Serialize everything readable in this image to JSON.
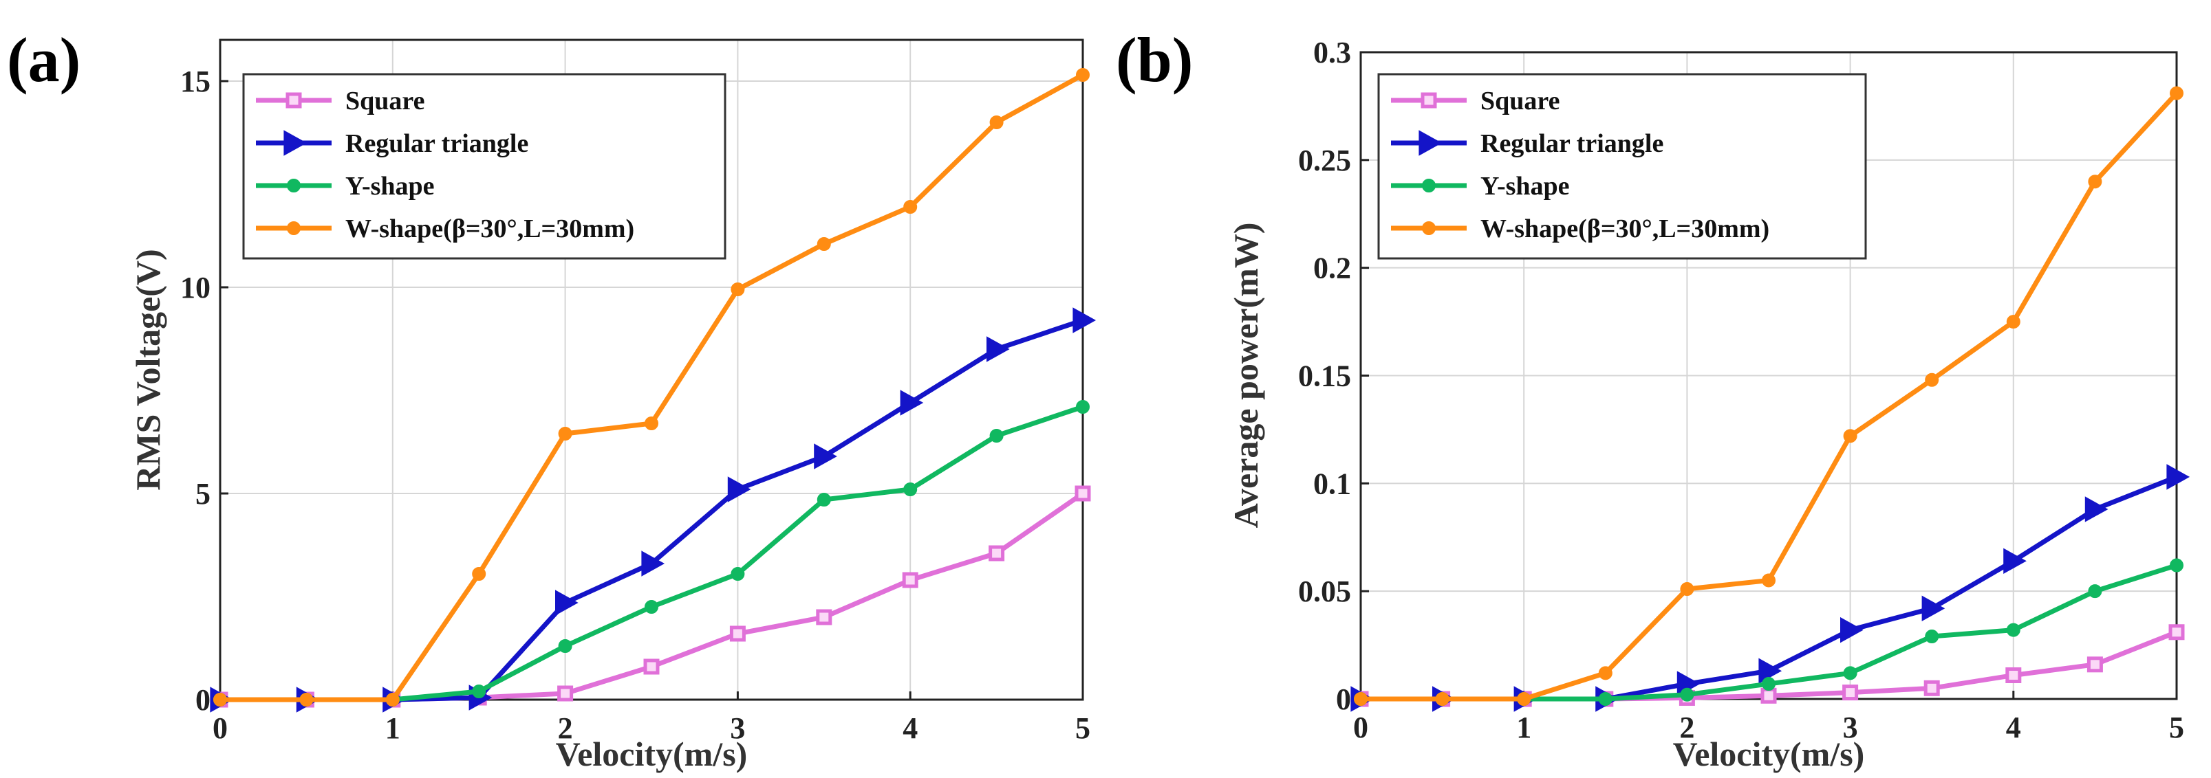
{
  "chart_data": [
    {
      "type": "line",
      "panel_label": "(a)",
      "xlabel": "Velocity(m/s)",
      "ylabel": "RMS Voltage(V)",
      "xlim": [
        0,
        5
      ],
      "ylim": [
        0,
        16
      ],
      "xticks": [
        0,
        1,
        2,
        3,
        4,
        5
      ],
      "xtick_labels": [
        "0",
        "1",
        "2",
        "3",
        "4",
        "5"
      ],
      "yticks": [
        0,
        5,
        10,
        15
      ],
      "ytick_labels": [
        "0",
        "5",
        "10",
        "15"
      ],
      "grid": true,
      "legend_position": "top-left",
      "x": [
        0,
        0.5,
        1,
        1.5,
        2,
        2.5,
        3,
        3.5,
        4,
        4.5,
        5
      ],
      "series": [
        {
          "name": "Square",
          "color": "#e070d8",
          "marker": "square",
          "values": [
            0,
            0,
            0,
            0.05,
            0.15,
            0.8,
            1.6,
            2.0,
            2.9,
            3.55,
            5.0
          ]
        },
        {
          "name": "Regular triangle",
          "color": "#1414c8",
          "marker": "triangle-right",
          "values": [
            0,
            0,
            0,
            0.05,
            2.35,
            3.3,
            5.1,
            5.9,
            7.2,
            8.5,
            9.2
          ]
        },
        {
          "name": "Y-shape",
          "color": "#10b860",
          "marker": "circle",
          "values": [
            0,
            0,
            0,
            0.2,
            1.3,
            2.25,
            3.05,
            4.85,
            5.1,
            6.4,
            7.1
          ]
        },
        {
          "name": "W-shape(β=30°,L=30mm)",
          "color": "#ff8c12",
          "marker": "circle",
          "values": [
            0,
            0,
            0,
            3.05,
            6.45,
            6.7,
            9.95,
            11.05,
            11.95,
            14.0,
            15.15
          ]
        }
      ]
    },
    {
      "type": "line",
      "panel_label": "(b)",
      "xlabel": "Velocity(m/s)",
      "ylabel": "Average power(mW)",
      "xlim": [
        0,
        5
      ],
      "ylim": [
        0,
        0.3
      ],
      "xticks": [
        0,
        1,
        2,
        3,
        4,
        5
      ],
      "xtick_labels": [
        "0",
        "1",
        "2",
        "3",
        "4",
        "5"
      ],
      "yticks": [
        0,
        0.05,
        0.1,
        0.15,
        0.2,
        0.25,
        0.3
      ],
      "ytick_labels": [
        "0",
        "0.05",
        "0.1",
        "0.15",
        "0.2",
        "0.25",
        "0.3"
      ],
      "grid": true,
      "legend_position": "top-left",
      "x": [
        0,
        0.5,
        1,
        1.5,
        2,
        2.5,
        3,
        3.5,
        4,
        4.5,
        5
      ],
      "series": [
        {
          "name": "Square",
          "color": "#e070d8",
          "marker": "square",
          "values": [
            0,
            0,
            0,
            0,
            0.0005,
            0.0015,
            0.003,
            0.005,
            0.011,
            0.016,
            0.031
          ]
        },
        {
          "name": "Regular triangle",
          "color": "#1414c8",
          "marker": "triangle-right",
          "values": [
            0,
            0,
            0,
            0,
            0.007,
            0.013,
            0.032,
            0.042,
            0.064,
            0.088,
            0.103
          ]
        },
        {
          "name": "Y-shape",
          "color": "#10b860",
          "marker": "circle",
          "values": [
            0,
            0,
            0,
            0,
            0.002,
            0.007,
            0.012,
            0.029,
            0.032,
            0.05,
            0.062
          ]
        },
        {
          "name": "W-shape(β=30°,L=30mm)",
          "color": "#ff8c12",
          "marker": "circle",
          "values": [
            0,
            0,
            0,
            0.012,
            0.051,
            0.055,
            0.122,
            0.148,
            0.175,
            0.24,
            0.281
          ]
        }
      ]
    }
  ]
}
